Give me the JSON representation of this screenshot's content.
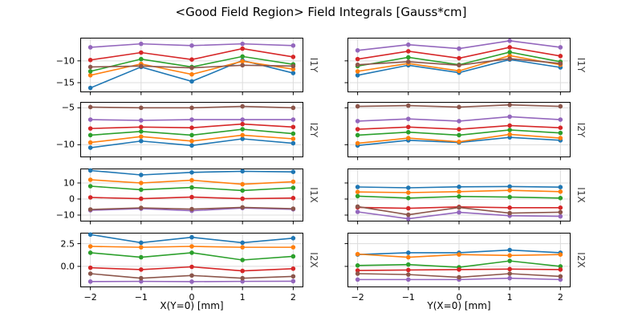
{
  "figure": {
    "title": "<Good Field Region> Field Integrals [Gauss*cm]",
    "background": "#ffffff",
    "grid_color": "#dcdcdc",
    "axis_color": "#000000",
    "xlabel_left": "X(Y=0) [mm]",
    "xlabel_right": "Y(X=0) [mm]",
    "xticks": [
      {
        "v": -2,
        "label": "−2"
      },
      {
        "v": -1,
        "label": "−1"
      },
      {
        "v": 0,
        "label": "0"
      },
      {
        "v": 1,
        "label": "1"
      },
      {
        "v": 2,
        "label": "2"
      }
    ]
  },
  "chart_data": [
    {
      "id": "I1Y-vs-X",
      "row_label": "I1Y",
      "type": "line",
      "grid": true,
      "x": [
        -2,
        -1,
        0,
        1,
        2
      ],
      "xlim": [
        -2.2,
        2.2
      ],
      "ylim": [
        -17.2,
        -4.7
      ],
      "yticks": [
        {
          "v": -10,
          "label": "−10"
        },
        {
          "v": -15,
          "label": "−15"
        }
      ],
      "show_ytick_labels": true,
      "show_xtick_labels": false,
      "series": [
        {
          "name": "blue",
          "color": "#1f77b4",
          "values": [
            -16.2,
            -11.4,
            -14.7,
            -9.9,
            -12.8
          ]
        },
        {
          "name": "orange",
          "color": "#ff7f0e",
          "values": [
            -13.3,
            -10.7,
            -13.1,
            -10.1,
            -11.9
          ]
        },
        {
          "name": "green",
          "color": "#2ca02c",
          "values": [
            -12.4,
            -9.6,
            -11.4,
            -9.0,
            -10.8
          ]
        },
        {
          "name": "red",
          "color": "#d62728",
          "values": [
            -9.8,
            -8.1,
            -9.7,
            -7.2,
            -9.1
          ]
        },
        {
          "name": "purple",
          "color": "#9467bd",
          "values": [
            -6.9,
            -6.1,
            -6.5,
            -6.1,
            -6.5
          ]
        },
        {
          "name": "brown",
          "color": "#8c564b",
          "values": [
            -11.4,
            -11.2,
            -11.6,
            -11.0,
            -11.2
          ]
        }
      ]
    },
    {
      "id": "I1Y-vs-Y",
      "row_label": "I1Y",
      "type": "line",
      "grid": true,
      "x": [
        -2,
        -1,
        0,
        1,
        2
      ],
      "xlim": [
        -2.2,
        2.2
      ],
      "ylim": [
        -17.2,
        -4.7
      ],
      "yticks": [
        {
          "v": -10,
          "label": "−10"
        },
        {
          "v": -15,
          "label": "−15"
        }
      ],
      "show_ytick_labels": false,
      "show_xtick_labels": false,
      "series": [
        {
          "name": "blue",
          "color": "#1f77b4",
          "values": [
            -13.3,
            -11.0,
            -12.7,
            -9.7,
            -11.5
          ]
        },
        {
          "name": "orange",
          "color": "#ff7f0e",
          "values": [
            -12.4,
            -10.6,
            -12.3,
            -8.8,
            -10.9
          ]
        },
        {
          "name": "green",
          "color": "#2ca02c",
          "values": [
            -11.2,
            -9.2,
            -10.9,
            -8.0,
            -10.2
          ]
        },
        {
          "name": "red",
          "color": "#d62728",
          "values": [
            -9.6,
            -7.8,
            -9.4,
            -6.9,
            -8.9
          ]
        },
        {
          "name": "purple",
          "color": "#9467bd",
          "values": [
            -7.6,
            -6.3,
            -7.2,
            -5.4,
            -6.9
          ]
        },
        {
          "name": "brown",
          "color": "#8c564b",
          "values": [
            -10.9,
            -10.2,
            -11.0,
            -9.5,
            -10.6
          ]
        }
      ]
    },
    {
      "id": "I2Y-vs-X",
      "row_label": "I2Y",
      "type": "line",
      "grid": true,
      "x": [
        -2,
        -1,
        0,
        1,
        2
      ],
      "xlim": [
        -2.2,
        2.2
      ],
      "ylim": [
        -11.7,
        -4.2
      ],
      "yticks": [
        {
          "v": -5,
          "label": "−5"
        },
        {
          "v": -10,
          "label": "−10"
        }
      ],
      "show_ytick_labels": true,
      "show_xtick_labels": false,
      "series": [
        {
          "name": "blue",
          "color": "#1f77b4",
          "values": [
            -10.4,
            -9.5,
            -10.1,
            -9.2,
            -9.8
          ]
        },
        {
          "name": "orange",
          "color": "#ff7f0e",
          "values": [
            -9.7,
            -8.9,
            -9.5,
            -8.7,
            -9.2
          ]
        },
        {
          "name": "green",
          "color": "#2ca02c",
          "values": [
            -8.7,
            -8.2,
            -8.7,
            -7.9,
            -8.5
          ]
        },
        {
          "name": "red",
          "color": "#d62728",
          "values": [
            -7.8,
            -7.6,
            -7.7,
            -7.2,
            -7.6
          ]
        },
        {
          "name": "purple",
          "color": "#9467bd",
          "values": [
            -6.6,
            -6.7,
            -6.6,
            -6.6,
            -6.6
          ]
        },
        {
          "name": "brown",
          "color": "#8c564b",
          "values": [
            -4.9,
            -5.0,
            -5.0,
            -4.8,
            -5.0
          ]
        }
      ]
    },
    {
      "id": "I2Y-vs-Y",
      "row_label": "I2Y",
      "type": "line",
      "grid": true,
      "x": [
        -2,
        -1,
        0,
        1,
        2
      ],
      "xlim": [
        -2.2,
        2.2
      ],
      "ylim": [
        -11.7,
        -4.2
      ],
      "yticks": [
        {
          "v": -5,
          "label": "−5"
        },
        {
          "v": -10,
          "label": "−10"
        }
      ],
      "show_ytick_labels": false,
      "show_xtick_labels": false,
      "series": [
        {
          "name": "blue",
          "color": "#1f77b4",
          "values": [
            -10.1,
            -9.4,
            -9.7,
            -9.0,
            -9.4
          ]
        },
        {
          "name": "orange",
          "color": "#ff7f0e",
          "values": [
            -9.8,
            -9.1,
            -9.6,
            -8.6,
            -9.1
          ]
        },
        {
          "name": "green",
          "color": "#2ca02c",
          "values": [
            -8.7,
            -8.3,
            -8.7,
            -8.0,
            -8.4
          ]
        },
        {
          "name": "red",
          "color": "#d62728",
          "values": [
            -7.9,
            -7.6,
            -7.9,
            -7.4,
            -7.7
          ]
        },
        {
          "name": "purple",
          "color": "#9467bd",
          "values": [
            -6.8,
            -6.5,
            -6.8,
            -6.2,
            -6.6
          ]
        },
        {
          "name": "brown",
          "color": "#8c564b",
          "values": [
            -4.8,
            -4.7,
            -4.9,
            -4.6,
            -4.8
          ]
        }
      ]
    },
    {
      "id": "I1X-vs-X",
      "row_label": "I1X",
      "type": "line",
      "grid": true,
      "x": [
        -2,
        -1,
        0,
        1,
        2
      ],
      "xlim": [
        -2.2,
        2.2
      ],
      "ylim": [
        -14,
        19
      ],
      "yticks": [
        {
          "v": 10,
          "label": "10"
        },
        {
          "v": 0,
          "label": "0"
        },
        {
          "v": -10,
          "label": "−10"
        }
      ],
      "show_ytick_labels": true,
      "show_xtick_labels": false,
      "series": [
        {
          "name": "blue",
          "color": "#1f77b4",
          "values": [
            17.8,
            15.0,
            16.6,
            17.3,
            16.9
          ]
        },
        {
          "name": "orange",
          "color": "#ff7f0e",
          "values": [
            12.0,
            10.0,
            11.7,
            9.2,
            10.8
          ]
        },
        {
          "name": "green",
          "color": "#2ca02c",
          "values": [
            8.0,
            5.8,
            7.2,
            5.3,
            7.0
          ]
        },
        {
          "name": "red",
          "color": "#d62728",
          "values": [
            1.0,
            0.2,
            1.2,
            0.2,
            0.6
          ]
        },
        {
          "name": "purple",
          "color": "#9467bd",
          "values": [
            -7.0,
            -6.0,
            -7.3,
            -5.6,
            -6.4
          ]
        },
        {
          "name": "brown",
          "color": "#8c564b",
          "values": [
            -6.5,
            -5.5,
            -6.3,
            -5.2,
            -6.0
          ]
        }
      ]
    },
    {
      "id": "I1X-vs-Y",
      "row_label": "I1X",
      "type": "line",
      "grid": true,
      "x": [
        -2,
        -1,
        0,
        1,
        2
      ],
      "xlim": [
        -2.2,
        2.2
      ],
      "ylim": [
        -14,
        19
      ],
      "yticks": [
        {
          "v": 10,
          "label": "10"
        },
        {
          "v": 0,
          "label": "0"
        },
        {
          "v": -10,
          "label": "−10"
        }
      ],
      "show_ytick_labels": false,
      "show_xtick_labels": false,
      "series": [
        {
          "name": "blue",
          "color": "#1f77b4",
          "values": [
            7.5,
            7.0,
            7.6,
            7.8,
            7.4
          ]
        },
        {
          "name": "orange",
          "color": "#ff7f0e",
          "values": [
            4.4,
            4.0,
            4.6,
            5.4,
            4.6
          ]
        },
        {
          "name": "green",
          "color": "#2ca02c",
          "values": [
            1.8,
            0.6,
            1.6,
            1.2,
            0.6
          ]
        },
        {
          "name": "red",
          "color": "#d62728",
          "values": [
            -5.2,
            -5.8,
            -4.9,
            -5.4,
            -5.4
          ]
        },
        {
          "name": "purple",
          "color": "#9467bd",
          "values": [
            -8.0,
            -12.3,
            -8.3,
            -10.4,
            -10.8
          ]
        },
        {
          "name": "brown",
          "color": "#8c564b",
          "values": [
            -4.7,
            -9.8,
            -5.3,
            -8.8,
            -8.2
          ]
        }
      ]
    },
    {
      "id": "I2X-vs-X",
      "row_label": "I2X",
      "type": "line",
      "grid": true,
      "x": [
        -2,
        -1,
        0,
        1,
        2
      ],
      "xlim": [
        -2.2,
        2.2
      ],
      "ylim": [
        -2.3,
        3.7
      ],
      "yticks": [
        {
          "v": 2.5,
          "label": "2.5"
        },
        {
          "v": 0,
          "label": "0.0"
        }
      ],
      "show_ytick_labels": true,
      "show_xtick_labels": true,
      "series": [
        {
          "name": "blue",
          "color": "#1f77b4",
          "values": [
            3.5,
            2.6,
            3.2,
            2.6,
            3.1
          ]
        },
        {
          "name": "orange",
          "color": "#ff7f0e",
          "values": [
            2.2,
            2.1,
            2.2,
            2.1,
            2.1
          ]
        },
        {
          "name": "green",
          "color": "#2ca02c",
          "values": [
            1.5,
            1.0,
            1.5,
            0.7,
            1.1
          ]
        },
        {
          "name": "red",
          "color": "#d62728",
          "values": [
            -0.15,
            -0.35,
            -0.05,
            -0.5,
            -0.25
          ]
        },
        {
          "name": "purple",
          "color": "#9467bd",
          "values": [
            -1.67,
            -1.65,
            -1.68,
            -1.65,
            -1.63
          ]
        },
        {
          "name": "brown",
          "color": "#8c564b",
          "values": [
            -0.8,
            -1.3,
            -1.0,
            -1.3,
            -1.1
          ]
        }
      ]
    },
    {
      "id": "I2X-vs-Y",
      "row_label": "I2X",
      "type": "line",
      "grid": true,
      "x": [
        -2,
        -1,
        0,
        1,
        2
      ],
      "xlim": [
        -2.2,
        2.2
      ],
      "ylim": [
        -2.3,
        3.7
      ],
      "yticks": [
        {
          "v": 2.5,
          "label": "2.5"
        },
        {
          "v": 0,
          "label": "0.0"
        }
      ],
      "show_ytick_labels": false,
      "show_xtick_labels": true,
      "series": [
        {
          "name": "blue",
          "color": "#1f77b4",
          "values": [
            1.3,
            1.5,
            1.5,
            1.8,
            1.5
          ]
        },
        {
          "name": "orange",
          "color": "#ff7f0e",
          "values": [
            1.35,
            1.0,
            1.3,
            1.2,
            1.3
          ]
        },
        {
          "name": "green",
          "color": "#2ca02c",
          "values": [
            0.1,
            0.2,
            -0.1,
            0.6,
            0.0
          ]
        },
        {
          "name": "red",
          "color": "#d62728",
          "values": [
            -0.45,
            -0.4,
            -0.35,
            -0.3,
            -0.35
          ]
        },
        {
          "name": "purple",
          "color": "#9467bd",
          "values": [
            -1.45,
            -1.45,
            -1.45,
            -1.3,
            -1.45
          ]
        },
        {
          "name": "brown",
          "color": "#8c564b",
          "values": [
            -0.8,
            -0.9,
            -1.2,
            -0.8,
            -1.1
          ]
        }
      ]
    }
  ]
}
